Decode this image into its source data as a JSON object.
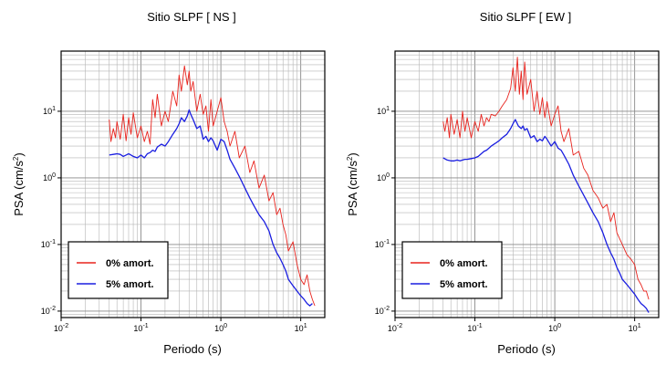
{
  "chart_data": [
    {
      "type": "line",
      "title": "Sitio SLPF [ NS ]",
      "xlabel": "Periodo (s)",
      "ylabel": "PSA (cm/s",
      "ylabel_sup": "2",
      "ylabel_close": ")",
      "xscale": "log",
      "yscale": "log",
      "xlim": [
        0.01,
        20
      ],
      "ylim": [
        0.008,
        80
      ],
      "xticks": [
        {
          "base": "10",
          "exp": "-2"
        },
        {
          "base": "10",
          "exp": "-1"
        },
        {
          "base": "10",
          "exp": "0"
        },
        {
          "base": "10",
          "exp": "1"
        }
      ],
      "yticks": [
        {
          "base": "10",
          "exp": "-2"
        },
        {
          "base": "10",
          "exp": "-1"
        },
        {
          "base": "10",
          "exp": "0"
        },
        {
          "base": "10",
          "exp": "1"
        }
      ],
      "grid": true,
      "legend_position": "bottom-left",
      "series": [
        {
          "name": "0% amort.",
          "color": "#e8231d",
          "x": [
            0.04,
            0.042,
            0.045,
            0.048,
            0.05,
            0.055,
            0.06,
            0.065,
            0.07,
            0.075,
            0.08,
            0.09,
            0.1,
            0.11,
            0.12,
            0.13,
            0.14,
            0.15,
            0.16,
            0.18,
            0.2,
            0.22,
            0.25,
            0.28,
            0.3,
            0.32,
            0.35,
            0.38,
            0.4,
            0.42,
            0.45,
            0.5,
            0.55,
            0.6,
            0.65,
            0.7,
            0.75,
            0.8,
            0.9,
            1.0,
            1.1,
            1.2,
            1.3,
            1.5,
            1.7,
            2.0,
            2.3,
            2.6,
            3.0,
            3.5,
            4.0,
            4.5,
            5.0,
            5.5,
            6.0,
            6.5,
            7.0,
            8.0,
            9.0,
            10.0,
            11.0,
            12.0,
            13.0,
            14.0,
            15.0
          ],
          "y": [
            7.5,
            3.5,
            5.5,
            4.0,
            7.0,
            3.8,
            9.0,
            3.6,
            8.0,
            4.5,
            9.5,
            4.0,
            6.0,
            3.5,
            5.0,
            3.2,
            15.0,
            8.0,
            18.0,
            6.0,
            10.0,
            7.0,
            20.0,
            12.0,
            35.0,
            20.0,
            48.0,
            25.0,
            40.0,
            20.0,
            28.0,
            10.0,
            18.0,
            9.0,
            12.0,
            5.0,
            15.0,
            6.0,
            10.0,
            16.0,
            7.0,
            5.0,
            3.0,
            5.0,
            2.0,
            3.0,
            1.2,
            1.8,
            0.7,
            1.1,
            0.45,
            0.6,
            0.28,
            0.35,
            0.2,
            0.14,
            0.08,
            0.11,
            0.05,
            0.03,
            0.025,
            0.035,
            0.02,
            0.015,
            0.012
          ]
        },
        {
          "name": "5% amort.",
          "color": "#1a1ee0",
          "x": [
            0.04,
            0.045,
            0.05,
            0.055,
            0.06,
            0.065,
            0.07,
            0.075,
            0.08,
            0.09,
            0.1,
            0.11,
            0.12,
            0.13,
            0.14,
            0.15,
            0.16,
            0.18,
            0.2,
            0.22,
            0.25,
            0.28,
            0.3,
            0.32,
            0.35,
            0.38,
            0.4,
            0.42,
            0.45,
            0.5,
            0.55,
            0.6,
            0.65,
            0.7,
            0.75,
            0.8,
            0.9,
            1.0,
            1.1,
            1.2,
            1.3,
            1.5,
            1.7,
            2.0,
            2.3,
            2.6,
            3.0,
            3.5,
            4.0,
            4.5,
            5.0,
            5.5,
            6.0,
            6.5,
            7.0,
            8.0,
            9.0,
            10.0,
            11.0,
            12.0,
            13.0,
            14.0
          ],
          "y": [
            2.2,
            2.25,
            2.3,
            2.25,
            2.1,
            2.2,
            2.3,
            2.2,
            2.1,
            2.0,
            2.2,
            2.0,
            2.3,
            2.4,
            2.6,
            2.5,
            2.9,
            3.2,
            3.0,
            3.5,
            4.5,
            5.5,
            6.5,
            8.0,
            7.0,
            8.5,
            10.5,
            9.0,
            7.5,
            5.5,
            6.0,
            3.8,
            4.2,
            3.5,
            4.0,
            3.6,
            2.6,
            3.8,
            3.5,
            2.6,
            1.9,
            1.4,
            1.05,
            0.7,
            0.5,
            0.38,
            0.28,
            0.22,
            0.16,
            0.1,
            0.075,
            0.062,
            0.05,
            0.04,
            0.03,
            0.024,
            0.02,
            0.017,
            0.015,
            0.013,
            0.012,
            0.013
          ]
        }
      ]
    },
    {
      "type": "line",
      "title": "Sitio SLPF [ EW ]",
      "xlabel": "Periodo (s)",
      "ylabel": "PSA (cm/s",
      "ylabel_sup": "2",
      "ylabel_close": ")",
      "xscale": "log",
      "yscale": "log",
      "xlim": [
        0.01,
        20
      ],
      "ylim": [
        0.008,
        80
      ],
      "xticks": [
        {
          "base": "10",
          "exp": "-2"
        },
        {
          "base": "10",
          "exp": "-1"
        },
        {
          "base": "10",
          "exp": "0"
        },
        {
          "base": "10",
          "exp": "1"
        }
      ],
      "yticks": [
        {
          "base": "10",
          "exp": "-2"
        },
        {
          "base": "10",
          "exp": "-1"
        },
        {
          "base": "10",
          "exp": "0"
        },
        {
          "base": "10",
          "exp": "1"
        }
      ],
      "grid": true,
      "legend_position": "bottom-left",
      "series": [
        {
          "name": "0% amort.",
          "color": "#e8231d",
          "x": [
            0.04,
            0.042,
            0.045,
            0.048,
            0.05,
            0.055,
            0.06,
            0.065,
            0.07,
            0.075,
            0.08,
            0.09,
            0.1,
            0.11,
            0.12,
            0.13,
            0.14,
            0.15,
            0.16,
            0.18,
            0.2,
            0.22,
            0.25,
            0.28,
            0.3,
            0.32,
            0.34,
            0.36,
            0.38,
            0.4,
            0.42,
            0.45,
            0.5,
            0.55,
            0.6,
            0.65,
            0.7,
            0.75,
            0.8,
            0.9,
            1.0,
            1.1,
            1.2,
            1.3,
            1.5,
            1.7,
            2.0,
            2.3,
            2.6,
            3.0,
            3.5,
            4.0,
            4.5,
            5.0,
            5.5,
            6.0,
            7.0,
            8.0,
            9.0,
            10.0,
            11.0,
            12.0,
            13.0,
            14.0,
            15.0
          ],
          "y": [
            7.0,
            5.0,
            8.0,
            4.0,
            9.0,
            4.5,
            7.5,
            4.0,
            10.0,
            5.0,
            8.0,
            4.0,
            7.0,
            5.0,
            9.0,
            6.0,
            8.0,
            7.0,
            9.0,
            8.5,
            10.0,
            12.0,
            15.0,
            22.0,
            45.0,
            20.0,
            65.0,
            18.0,
            40.0,
            15.0,
            55.0,
            18.0,
            30.0,
            10.0,
            20.0,
            9.0,
            16.0,
            8.0,
            14.0,
            6.0,
            9.0,
            12.0,
            5.0,
            3.5,
            5.5,
            2.2,
            2.5,
            1.4,
            1.1,
            0.65,
            0.5,
            0.35,
            0.4,
            0.22,
            0.3,
            0.15,
            0.1,
            0.07,
            0.06,
            0.05,
            0.03,
            0.025,
            0.02,
            0.02,
            0.015
          ]
        },
        {
          "name": "5% amort.",
          "color": "#1a1ee0",
          "x": [
            0.04,
            0.045,
            0.05,
            0.055,
            0.06,
            0.065,
            0.07,
            0.075,
            0.08,
            0.09,
            0.1,
            0.11,
            0.12,
            0.13,
            0.14,
            0.15,
            0.16,
            0.18,
            0.2,
            0.22,
            0.25,
            0.28,
            0.3,
            0.32,
            0.35,
            0.38,
            0.4,
            0.42,
            0.45,
            0.5,
            0.55,
            0.6,
            0.65,
            0.7,
            0.75,
            0.8,
            0.9,
            1.0,
            1.1,
            1.2,
            1.3,
            1.5,
            1.7,
            2.0,
            2.3,
            2.6,
            3.0,
            3.5,
            4.0,
            4.5,
            5.0,
            5.5,
            6.0,
            6.5,
            7.0,
            8.0,
            9.0,
            10.0,
            11.0,
            12.0,
            13.0,
            14.0,
            15.0
          ],
          "y": [
            2.0,
            1.85,
            1.8,
            1.8,
            1.85,
            1.8,
            1.85,
            1.9,
            1.9,
            1.95,
            2.0,
            2.1,
            2.3,
            2.5,
            2.6,
            2.8,
            3.0,
            3.3,
            3.6,
            4.0,
            4.5,
            5.5,
            6.5,
            7.5,
            6.0,
            5.5,
            6.0,
            5.2,
            5.5,
            4.0,
            4.3,
            3.5,
            3.8,
            3.6,
            4.2,
            3.8,
            3.0,
            3.5,
            2.8,
            2.6,
            2.2,
            1.6,
            1.1,
            0.75,
            0.55,
            0.42,
            0.3,
            0.22,
            0.15,
            0.1,
            0.075,
            0.06,
            0.045,
            0.037,
            0.03,
            0.025,
            0.021,
            0.018,
            0.015,
            0.013,
            0.012,
            0.011,
            0.0095
          ]
        }
      ]
    }
  ]
}
